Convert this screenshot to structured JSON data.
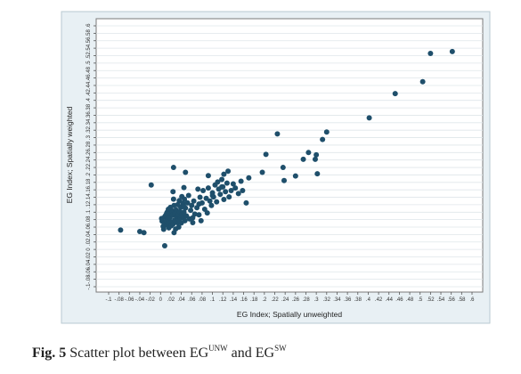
{
  "chart_data": {
    "type": "scatter",
    "title": "",
    "xlabel": "EG Index; Spatially unweighted",
    "ylabel": "EG Index; Spatially weighted",
    "xlim": [
      -0.1,
      0.6
    ],
    "ylim": [
      -0.1,
      0.6
    ],
    "xticks": [
      -0.1,
      -0.08,
      -0.06,
      -0.04,
      -0.02,
      0,
      0.02,
      0.04,
      0.06,
      0.08,
      0.1,
      0.12,
      0.14,
      0.16,
      0.18,
      0.2,
      0.22,
      0.24,
      0.26,
      0.28,
      0.3,
      0.32,
      0.34,
      0.36,
      0.38,
      0.4,
      0.42,
      0.44,
      0.46,
      0.48,
      0.5,
      0.52,
      0.54,
      0.56,
      0.58,
      0.6
    ],
    "xtick_labels": [
      "-.1",
      "-.08",
      "-.06",
      "-.04",
      "-.02",
      "0",
      ".02",
      ".04",
      ".06",
      ".08",
      ".1",
      ".12",
      ".14",
      ".16",
      ".18",
      ".2",
      ".22",
      ".24",
      ".26",
      ".28",
      ".3",
      ".32",
      ".34",
      ".36",
      ".38",
      ".4",
      ".42",
      ".44",
      ".46",
      ".48",
      ".5",
      ".52",
      ".54",
      ".56",
      ".58",
      ".6"
    ],
    "yticks": [
      -0.1,
      -0.08,
      -0.06,
      -0.04,
      -0.02,
      0,
      0.02,
      0.04,
      0.06,
      0.08,
      0.1,
      0.12,
      0.14,
      0.16,
      0.18,
      0.2,
      0.22,
      0.24,
      0.26,
      0.28,
      0.3,
      0.32,
      0.34,
      0.36,
      0.38,
      0.4,
      0.42,
      0.44,
      0.46,
      0.48,
      0.5,
      0.52,
      0.54,
      0.56,
      0.58,
      0.6
    ],
    "ytick_labels": [
      "-.1",
      "-.08",
      "-.06",
      "-.04",
      "-.02",
      "0",
      ".02",
      ".04",
      ".06",
      ".08",
      ".1",
      ".12",
      ".14",
      ".16",
      ".18",
      ".2",
      ".22",
      ".24",
      ".26",
      ".28",
      ".3",
      ".32",
      ".34",
      ".36",
      ".38",
      ".4",
      ".42",
      ".44",
      ".46",
      ".48",
      ".5",
      ".52",
      ".54",
      ".56",
      ".58",
      ".6"
    ],
    "grid": true,
    "point_color": "#1f4f6b",
    "points": [
      [
        -0.077,
        0.052
      ],
      [
        -0.04,
        0.048
      ],
      [
        -0.032,
        0.045
      ],
      [
        -0.018,
        0.173
      ],
      [
        0.002,
        0.083
      ],
      [
        0.003,
        0.076
      ],
      [
        0.005,
        0.062
      ],
      [
        0.006,
        0.054
      ],
      [
        0.007,
        0.07
      ],
      [
        0.008,
        0.088
      ],
      [
        0.01,
        0.092
      ],
      [
        0.011,
        0.077
      ],
      [
        0.012,
        0.065
      ],
      [
        0.013,
        0.1
      ],
      [
        0.014,
        0.082
      ],
      [
        0.015,
        0.07
      ],
      [
        0.016,
        0.058
      ],
      [
        0.017,
        0.094
      ],
      [
        0.018,
        0.085
      ],
      [
        0.019,
        0.113
      ],
      [
        0.02,
        0.073
      ],
      [
        0.021,
        0.064
      ],
      [
        0.022,
        0.104
      ],
      [
        0.023,
        0.092
      ],
      [
        0.024,
        0.068
      ],
      [
        0.025,
        0.135
      ],
      [
        0.026,
        0.118
      ],
      [
        0.027,
        0.079
      ],
      [
        0.028,
        0.097
      ],
      [
        0.029,
        0.055
      ],
      [
        0.03,
        0.106
      ],
      [
        0.031,
        0.088
      ],
      [
        0.032,
        0.072
      ],
      [
        0.033,
        0.12
      ],
      [
        0.034,
        0.093
      ],
      [
        0.035,
        0.06
      ],
      [
        0.036,
        0.131
      ],
      [
        0.037,
        0.101
      ],
      [
        0.038,
        0.083
      ],
      [
        0.039,
        0.113
      ],
      [
        0.04,
        0.071
      ],
      [
        0.041,
        0.142
      ],
      [
        0.042,
        0.095
      ],
      [
        0.043,
        0.124
      ],
      [
        0.044,
        0.086
      ],
      [
        0.045,
        0.1
      ],
      [
        0.046,
        0.135
      ],
      [
        0.047,
        0.077
      ],
      [
        0.048,
        0.111
      ],
      [
        0.05,
        0.09
      ],
      [
        0.052,
        0.125
      ],
      [
        0.054,
        0.145
      ],
      [
        0.056,
        0.082
      ],
      [
        0.058,
        0.105
      ],
      [
        0.06,
        0.118
      ],
      [
        0.062,
        0.072
      ],
      [
        0.064,
        0.13
      ],
      [
        0.066,
        0.095
      ],
      [
        0.07,
        0.112
      ],
      [
        0.072,
        0.162
      ],
      [
        0.074,
        0.093
      ],
      [
        0.076,
        0.14
      ],
      [
        0.078,
        0.077
      ],
      [
        0.08,
        0.125
      ],
      [
        0.082,
        0.158
      ],
      [
        0.085,
        0.108
      ],
      [
        0.088,
        0.137
      ],
      [
        0.09,
        0.098
      ],
      [
        0.092,
        0.165
      ],
      [
        0.095,
        0.13
      ],
      [
        0.098,
        0.118
      ],
      [
        0.1,
        0.152
      ],
      [
        0.102,
        0.141
      ],
      [
        0.105,
        0.173
      ],
      [
        0.108,
        0.128
      ],
      [
        0.11,
        0.181
      ],
      [
        0.112,
        0.162
      ],
      [
        0.115,
        0.148
      ],
      [
        0.118,
        0.188
      ],
      [
        0.12,
        0.168
      ],
      [
        0.122,
        0.134
      ],
      [
        0.125,
        0.155
      ],
      [
        0.128,
        0.178
      ],
      [
        0.132,
        0.141
      ],
      [
        0.136,
        0.158
      ],
      [
        0.14,
        0.176
      ],
      [
        0.144,
        0.165
      ],
      [
        0.15,
        0.15
      ],
      [
        0.155,
        0.183
      ],
      [
        0.158,
        0.158
      ],
      [
        0.165,
        0.125
      ],
      [
        0.17,
        0.192
      ],
      [
        0.045,
        0.115
      ],
      [
        0.036,
        0.078
      ],
      [
        0.012,
        0.098
      ],
      [
        0.026,
        0.045
      ],
      [
        0.015,
        0.108
      ],
      [
        0.062,
        0.085
      ],
      [
        0.074,
        0.122
      ],
      [
        0.008,
        0.01
      ],
      [
        0.045,
        0.166
      ],
      [
        0.024,
        0.155
      ],
      [
        0.025,
        0.22
      ],
      [
        0.048,
        0.207
      ],
      [
        0.1,
        0.145
      ],
      [
        0.118,
        0.168
      ],
      [
        0.092,
        0.198
      ],
      [
        0.122,
        0.202
      ],
      [
        0.13,
        0.21
      ],
      [
        0.196,
        0.207
      ],
      [
        0.203,
        0.255
      ],
      [
        0.225,
        0.31
      ],
      [
        0.236,
        0.22
      ],
      [
        0.238,
        0.185
      ],
      [
        0.26,
        0.197
      ],
      [
        0.275,
        0.242
      ],
      [
        0.285,
        0.26
      ],
      [
        0.298,
        0.242
      ],
      [
        0.3,
        0.254
      ],
      [
        0.302,
        0.203
      ],
      [
        0.312,
        0.295
      ],
      [
        0.32,
        0.315
      ],
      [
        0.402,
        0.353
      ],
      [
        0.452,
        0.418
      ],
      [
        0.505,
        0.45
      ],
      [
        0.562,
        0.531
      ],
      [
        0.52,
        0.526
      ]
    ]
  },
  "caption": {
    "label": "Fig. 5",
    "text": "Scatter plot between EG",
    "sup1": "UNW",
    "mid": "and EG",
    "sup2": "SW"
  }
}
